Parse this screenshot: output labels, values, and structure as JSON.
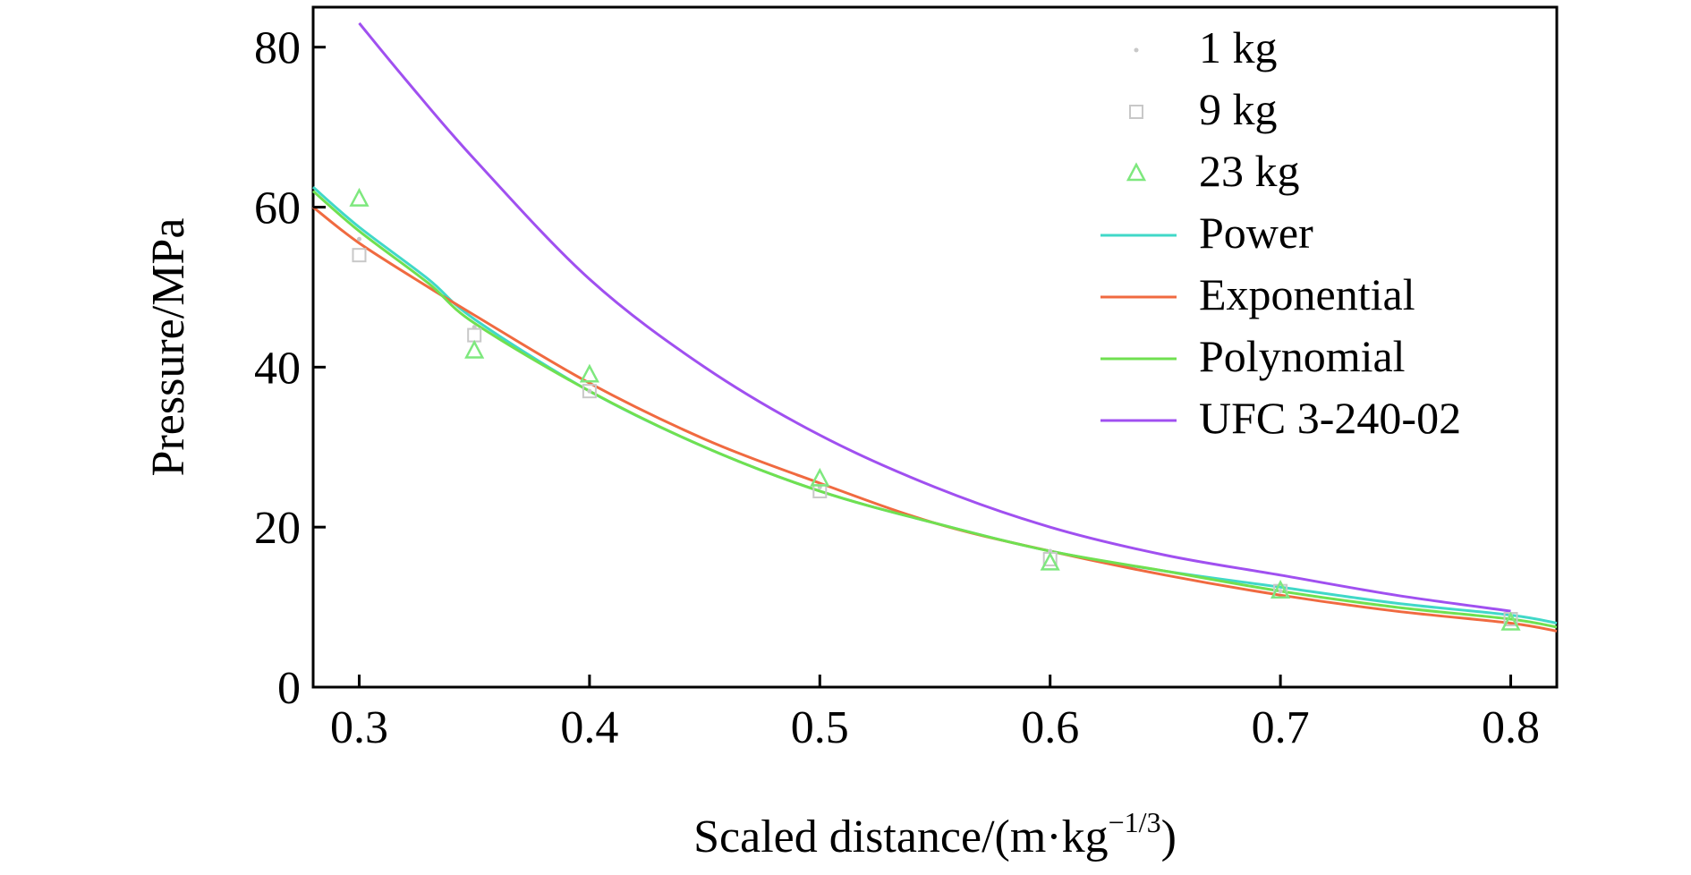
{
  "chart_data": {
    "type": "line",
    "title": "",
    "xlabel": "Scaled distance/(m·kg",
    "xlabel_sup": "−1/3",
    "xlabel_close": ")",
    "ylabel": "Pressure/MPa",
    "xlim": [
      0.28,
      0.82
    ],
    "ylim": [
      0,
      85
    ],
    "xticks": [
      0.3,
      0.4,
      0.5,
      0.6,
      0.7,
      0.8
    ],
    "xtick_labels": [
      "0.3",
      "0.4",
      "0.5",
      "0.6",
      "0.7",
      "0.8"
    ],
    "yticks": [
      0,
      20,
      40,
      60,
      80
    ],
    "ytick_labels": [
      "0",
      "20",
      "40",
      "60",
      "80"
    ],
    "grid": false,
    "legend_position": "top-right",
    "series": [
      {
        "name": "1 kg",
        "kind": "scatter",
        "marker": "dot",
        "color": "#c8c8c8",
        "x": [
          0.3,
          0.35,
          0.4,
          0.5,
          0.6,
          0.7,
          0.8
        ],
        "y": [
          56,
          45,
          37,
          25,
          17,
          12,
          9
        ]
      },
      {
        "name": "9 kg",
        "kind": "scatter",
        "marker": "square",
        "color": "#c8c8c8",
        "x": [
          0.3,
          0.35,
          0.4,
          0.5,
          0.6,
          0.7,
          0.8
        ],
        "y": [
          54,
          44,
          37,
          24.5,
          16,
          12,
          8.5
        ]
      },
      {
        "name": "23 kg",
        "kind": "scatter",
        "marker": "triangle",
        "color": "#7ee87e",
        "x": [
          0.3,
          0.35,
          0.4,
          0.5,
          0.6,
          0.7,
          0.8
        ],
        "y": [
          61,
          42,
          39,
          26,
          15.5,
          12,
          8
        ]
      },
      {
        "name": "Power",
        "kind": "line",
        "color": "#40d8c8",
        "x": [
          0.28,
          0.3,
          0.33,
          0.35,
          0.4,
          0.45,
          0.5,
          0.55,
          0.6,
          0.65,
          0.7,
          0.75,
          0.8,
          0.82
        ],
        "y": [
          62.5,
          57.5,
          51,
          46,
          37,
          30,
          24.5,
          20.5,
          17,
          14.5,
          12.5,
          10.5,
          9,
          8
        ]
      },
      {
        "name": "Exponential",
        "kind": "line",
        "color": "#f06a40",
        "x": [
          0.28,
          0.3,
          0.33,
          0.35,
          0.4,
          0.45,
          0.5,
          0.55,
          0.6,
          0.65,
          0.7,
          0.75,
          0.8,
          0.82
        ],
        "y": [
          60,
          55.5,
          50,
          46.5,
          38,
          31,
          25.5,
          20.5,
          17,
          14,
          11.5,
          9.5,
          8,
          7
        ]
      },
      {
        "name": "Polynomial",
        "kind": "line",
        "color": "#70e050",
        "x": [
          0.28,
          0.3,
          0.33,
          0.35,
          0.4,
          0.45,
          0.5,
          0.55,
          0.6,
          0.65,
          0.7,
          0.75,
          0.8,
          0.82
        ],
        "y": [
          62,
          57,
          50.5,
          45.5,
          37,
          30,
          24.5,
          20.5,
          17,
          14.5,
          12,
          10,
          8.5,
          7.5
        ]
      },
      {
        "name": "UFC 3-240-02",
        "kind": "line",
        "color": "#a050f0",
        "x": [
          0.3,
          0.32,
          0.35,
          0.4,
          0.45,
          0.5,
          0.55,
          0.6,
          0.65,
          0.7,
          0.75,
          0.8
        ],
        "y": [
          83,
          76,
          66,
          51,
          40,
          31.5,
          25,
          20,
          16.5,
          14,
          11.5,
          9.5
        ]
      }
    ]
  }
}
